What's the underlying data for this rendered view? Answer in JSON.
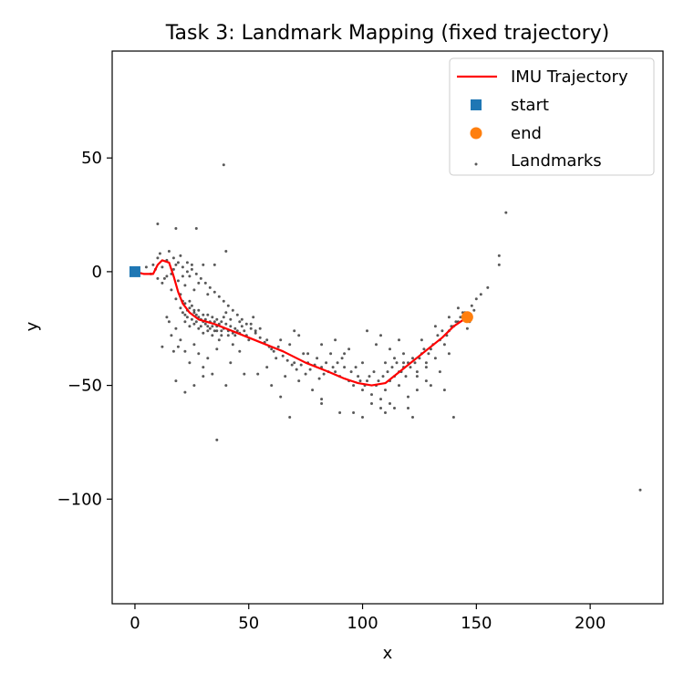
{
  "chart_data": {
    "type": "scatter",
    "title": "Task 3: Landmark Mapping (fixed trajectory)",
    "xlabel": "x",
    "ylabel": "y",
    "xlim": [
      -10,
      232
    ],
    "ylim": [
      -146,
      97
    ],
    "xticks": [
      0,
      50,
      100,
      150,
      200
    ],
    "yticks": [
      50,
      0,
      -50,
      -100
    ],
    "xtick_labels": [
      "0",
      "50",
      "100",
      "150",
      "200"
    ],
    "ytick_labels": [
      "50",
      "0",
      "−50",
      "−100"
    ],
    "grid": false,
    "legend_position": "top-right",
    "series": [
      {
        "name": "IMU Trajectory",
        "kind": "line",
        "color": "#ff0000",
        "x": [
          0,
          4,
          8,
          10,
          12,
          15,
          17,
          19,
          21,
          24,
          28,
          35,
          45,
          55,
          65,
          75,
          85,
          92,
          98,
          104,
          110,
          115,
          120,
          125,
          130,
          135,
          140,
          146
        ],
        "y": [
          0,
          -1,
          -1,
          3,
          5,
          4,
          -2,
          -9,
          -14,
          -18,
          -21,
          -23,
          -27,
          -31,
          -35,
          -40,
          -44,
          -47,
          -49,
          -50,
          -49,
          -45,
          -41,
          -37,
          -33,
          -29,
          -24,
          -20
        ]
      },
      {
        "name": "start",
        "kind": "marker",
        "marker": "square",
        "color": "#1f77b4",
        "points": [
          [
            0,
            0
          ]
        ]
      },
      {
        "name": "end",
        "kind": "marker",
        "marker": "circle",
        "color": "#ff7f0e",
        "points": [
          [
            146,
            -20
          ]
        ]
      },
      {
        "name": "Landmarks",
        "kind": "scatter",
        "color": "#000000",
        "points": [
          [
            39,
            47
          ],
          [
            163,
            26
          ],
          [
            10,
            21
          ],
          [
            18,
            19
          ],
          [
            27,
            19
          ],
          [
            160,
            7
          ],
          [
            160,
            3
          ],
          [
            40,
            9
          ],
          [
            35,
            3
          ],
          [
            222,
            -96
          ],
          [
            36,
            -74
          ],
          [
            5,
            2
          ],
          [
            7,
            -1
          ],
          [
            8,
            3
          ],
          [
            9,
            1
          ],
          [
            10,
            6
          ],
          [
            11,
            8
          ],
          [
            12,
            2
          ],
          [
            13,
            -3
          ],
          [
            14,
            5
          ],
          [
            15,
            9
          ],
          [
            16,
            -1
          ],
          [
            17,
            1
          ],
          [
            17,
            6
          ],
          [
            18,
            3
          ],
          [
            19,
            -4
          ],
          [
            20,
            7
          ],
          [
            21,
            2
          ],
          [
            22,
            -6
          ],
          [
            23,
            4
          ],
          [
            24,
            -2
          ],
          [
            25,
            1
          ],
          [
            26,
            -8
          ],
          [
            28,
            -5
          ],
          [
            30,
            3
          ],
          [
            32,
            -10
          ],
          [
            10,
            -3
          ],
          [
            12,
            -5
          ],
          [
            14,
            -2
          ],
          [
            16,
            -8
          ],
          [
            18,
            -12
          ],
          [
            20,
            -10
          ],
          [
            22,
            -14
          ],
          [
            24,
            -16
          ],
          [
            26,
            -18
          ],
          [
            28,
            -20
          ],
          [
            30,
            -22
          ],
          [
            32,
            -24
          ],
          [
            34,
            -20
          ],
          [
            36,
            -26
          ],
          [
            38,
            -22
          ],
          [
            40,
            -18
          ],
          [
            42,
            -24
          ],
          [
            44,
            -28
          ],
          [
            46,
            -22
          ],
          [
            48,
            -26
          ],
          [
            50,
            -30
          ],
          [
            52,
            -20
          ],
          [
            21,
            -18
          ],
          [
            22,
            -22
          ],
          [
            23,
            -20
          ],
          [
            24,
            -24
          ],
          [
            25,
            -21
          ],
          [
            26,
            -23
          ],
          [
            27,
            -19
          ],
          [
            28,
            -25
          ],
          [
            29,
            -21
          ],
          [
            30,
            -27
          ],
          [
            31,
            -23
          ],
          [
            32,
            -19
          ],
          [
            33,
            -25
          ],
          [
            34,
            -28
          ],
          [
            35,
            -22
          ],
          [
            36,
            -24
          ],
          [
            37,
            -30
          ],
          [
            38,
            -26
          ],
          [
            39,
            -20
          ],
          [
            41,
            -28
          ],
          [
            43,
            -32
          ],
          [
            45,
            -26
          ],
          [
            20,
            -30
          ],
          [
            22,
            -35
          ],
          [
            24,
            -40
          ],
          [
            26,
            -32
          ],
          [
            28,
            -36
          ],
          [
            30,
            -42
          ],
          [
            32,
            -38
          ],
          [
            34,
            -45
          ],
          [
            36,
            -34
          ],
          [
            18,
            -25
          ],
          [
            19,
            -33
          ],
          [
            15,
            -22
          ],
          [
            16,
            -28
          ],
          [
            17,
            -35
          ],
          [
            14,
            -20
          ],
          [
            12,
            -33
          ],
          [
            18,
            -48
          ],
          [
            22,
            -53
          ],
          [
            26,
            -50
          ],
          [
            30,
            -46
          ],
          [
            40,
            -50
          ],
          [
            42,
            -40
          ],
          [
            46,
            -35
          ],
          [
            48,
            -45
          ],
          [
            54,
            -45
          ],
          [
            58,
            -42
          ],
          [
            60,
            -50
          ],
          [
            62,
            -38
          ],
          [
            64,
            -55
          ],
          [
            66,
            -46
          ],
          [
            70,
            -40
          ],
          [
            72,
            -48
          ],
          [
            74,
            -36
          ],
          [
            55,
            -25
          ],
          [
            58,
            -30
          ],
          [
            60,
            -34
          ],
          [
            64,
            -30
          ],
          [
            68,
            -32
          ],
          [
            72,
            -28
          ],
          [
            76,
            -36
          ],
          [
            80,
            -38
          ],
          [
            82,
            -42
          ],
          [
            84,
            -40
          ],
          [
            86,
            -36
          ],
          [
            88,
            -44
          ],
          [
            90,
            -46
          ],
          [
            92,
            -42
          ],
          [
            94,
            -48
          ],
          [
            96,
            -50
          ],
          [
            98,
            -46
          ],
          [
            100,
            -52
          ],
          [
            102,
            -48
          ],
          [
            104,
            -54
          ],
          [
            106,
            -50
          ],
          [
            108,
            -56
          ],
          [
            110,
            -52
          ],
          [
            112,
            -48
          ],
          [
            114,
            -46
          ],
          [
            116,
            -44
          ],
          [
            118,
            -42
          ],
          [
            120,
            -40
          ],
          [
            122,
            -38
          ],
          [
            124,
            -44
          ],
          [
            126,
            -36
          ],
          [
            128,
            -40
          ],
          [
            130,
            -34
          ],
          [
            132,
            -38
          ],
          [
            134,
            -30
          ],
          [
            136,
            -32
          ],
          [
            138,
            -26
          ],
          [
            140,
            -24
          ],
          [
            142,
            -22
          ],
          [
            144,
            -18
          ],
          [
            148,
            -15
          ],
          [
            152,
            -10
          ],
          [
            155,
            -7
          ],
          [
            150,
            -12
          ],
          [
            142,
            -16
          ],
          [
            146,
            -25
          ],
          [
            138,
            -36
          ],
          [
            134,
            -44
          ],
          [
            130,
            -50
          ],
          [
            128,
            -48
          ],
          [
            124,
            -52
          ],
          [
            120,
            -55
          ],
          [
            116,
            -50
          ],
          [
            112,
            -58
          ],
          [
            108,
            -60
          ],
          [
            104,
            -58
          ],
          [
            100,
            -64
          ],
          [
            96,
            -62
          ],
          [
            90,
            -62
          ],
          [
            82,
            -56
          ],
          [
            82,
            -58
          ],
          [
            78,
            -52
          ],
          [
            68,
            -64
          ],
          [
            76,
            -40
          ],
          [
            88,
            -30
          ],
          [
            94,
            -34
          ],
          [
            100,
            -40
          ],
          [
            102,
            -26
          ],
          [
            106,
            -32
          ],
          [
            108,
            -28
          ],
          [
            112,
            -34
          ],
          [
            116,
            -30
          ],
          [
            118,
            -40
          ],
          [
            120,
            -60
          ],
          [
            122,
            -64
          ],
          [
            124,
            -46
          ],
          [
            128,
            -42
          ],
          [
            136,
            -52
          ],
          [
            140,
            -64
          ],
          [
            126,
            -30
          ],
          [
            132,
            -24
          ],
          [
            138,
            -20
          ],
          [
            70,
            -26
          ],
          [
            82,
            -32
          ],
          [
            92,
            -36
          ],
          [
            110,
            -40
          ],
          [
            114,
            -38
          ],
          [
            118,
            -36
          ],
          [
            114,
            -60
          ],
          [
            110,
            -62
          ],
          [
            85,
            -44
          ],
          [
            87,
            -42
          ],
          [
            89,
            -40
          ],
          [
            91,
            -38
          ],
          [
            95,
            -44
          ],
          [
            97,
            -42
          ],
          [
            99,
            -48
          ],
          [
            101,
            -50
          ],
          [
            103,
            -46
          ],
          [
            105,
            -44
          ],
          [
            107,
            -48
          ],
          [
            109,
            -46
          ],
          [
            111,
            -44
          ],
          [
            113,
            -42
          ],
          [
            115,
            -40
          ],
          [
            117,
            -44
          ],
          [
            119,
            -46
          ],
          [
            121,
            -42
          ],
          [
            123,
            -40
          ],
          [
            125,
            -38
          ],
          [
            127,
            -34
          ],
          [
            129,
            -36
          ],
          [
            131,
            -32
          ],
          [
            133,
            -28
          ],
          [
            135,
            -26
          ],
          [
            137,
            -28
          ],
          [
            139,
            -24
          ],
          [
            141,
            -22
          ],
          [
            143,
            -20
          ],
          [
            145,
            -18
          ],
          [
            147,
            -22
          ],
          [
            149,
            -17
          ],
          [
            19,
            4
          ],
          [
            21,
            -2
          ],
          [
            23,
            0
          ],
          [
            25,
            3
          ],
          [
            27,
            -1
          ],
          [
            29,
            -3
          ],
          [
            31,
            -5
          ],
          [
            33,
            -7
          ],
          [
            35,
            -9
          ],
          [
            37,
            -11
          ],
          [
            39,
            -13
          ],
          [
            41,
            -15
          ],
          [
            43,
            -17
          ],
          [
            45,
            -19
          ],
          [
            47,
            -21
          ],
          [
            49,
            -23
          ],
          [
            51,
            -25
          ],
          [
            53,
            -27
          ],
          [
            55,
            -29
          ],
          [
            57,
            -31
          ],
          [
            59,
            -33
          ],
          [
            61,
            -35
          ],
          [
            63,
            -33
          ],
          [
            65,
            -37
          ],
          [
            67,
            -39
          ],
          [
            69,
            -41
          ],
          [
            71,
            -43
          ],
          [
            73,
            -41
          ],
          [
            75,
            -45
          ],
          [
            77,
            -43
          ],
          [
            79,
            -41
          ],
          [
            81,
            -47
          ],
          [
            83,
            -45
          ],
          [
            20,
            -16
          ],
          [
            21,
            -13
          ],
          [
            22,
            -19
          ],
          [
            23,
            -17
          ],
          [
            24,
            -13
          ],
          [
            25,
            -15
          ],
          [
            26,
            -17
          ],
          [
            27,
            -22
          ],
          [
            28,
            -17
          ],
          [
            29,
            -24
          ],
          [
            30,
            -19
          ],
          [
            31,
            -21
          ],
          [
            32,
            -26
          ],
          [
            33,
            -22
          ],
          [
            34,
            -24
          ],
          [
            35,
            -26
          ],
          [
            36,
            -21
          ],
          [
            37,
            -23
          ],
          [
            38,
            -28
          ],
          [
            39,
            -25
          ],
          [
            40,
            -23
          ],
          [
            41,
            -26
          ],
          [
            42,
            -21
          ],
          [
            43,
            -27
          ],
          [
            44,
            -25
          ],
          [
            46,
            -27
          ],
          [
            47,
            -24
          ],
          [
            49,
            -28
          ],
          [
            51,
            -23
          ],
          [
            53,
            -26
          ]
        ]
      }
    ]
  }
}
